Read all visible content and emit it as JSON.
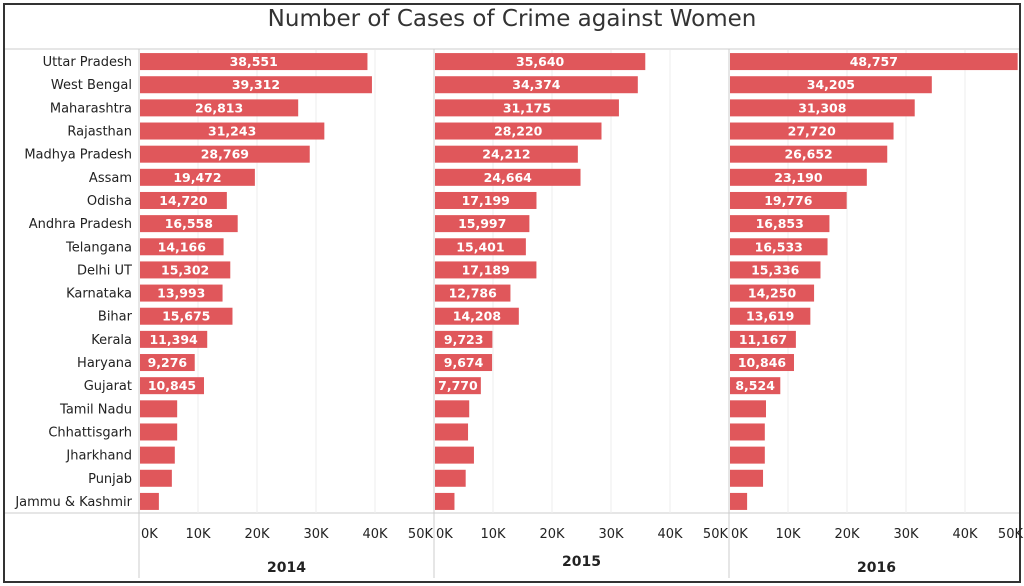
{
  "chart_data": {
    "type": "bar",
    "orientation": "horizontal",
    "title": "Number of Cases of Crime against Women",
    "categories": [
      "Uttar Pradesh",
      "West Bengal",
      "Maharashtra",
      "Rajasthan",
      "Madhya Pradesh",
      "Assam",
      "Odisha",
      "Andhra Pradesh",
      "Telangana",
      "Delhi UT",
      "Karnataka",
      "Bihar",
      "Kerala",
      "Haryana",
      "Gujarat",
      "Tamil Nadu",
      "Chhattisgarh",
      "Jharkhand",
      "Punjab",
      "Jammu & Kashmir"
    ],
    "panels": [
      {
        "name": "2014",
        "values": [
          38551,
          39312,
          26813,
          31243,
          28769,
          19472,
          14720,
          16558,
          14166,
          15302,
          13993,
          15675,
          11394,
          9276,
          10845,
          6300,
          6300,
          5900,
          5400,
          3200
        ],
        "labeled_count": 15
      },
      {
        "name": "2015",
        "values": [
          35640,
          34374,
          31175,
          28220,
          24212,
          24664,
          17199,
          15997,
          15401,
          17189,
          12786,
          14208,
          9723,
          9674,
          7770,
          5800,
          5600,
          6600,
          5200,
          3300
        ],
        "labeled_count": 15
      },
      {
        "name": "2016",
        "values": [
          48757,
          34205,
          31308,
          27720,
          26652,
          23190,
          19776,
          16853,
          16533,
          15336,
          14250,
          13619,
          11167,
          10846,
          8524,
          6100,
          5900,
          5900,
          5600,
          2900
        ],
        "labeled_count": 15
      }
    ],
    "xlim": [
      0,
      50000
    ],
    "x_ticks": [
      "0K",
      "10K",
      "20K",
      "30K",
      "40K",
      "50K"
    ],
    "grid": true,
    "bar_color": "#e0575b",
    "legend": "none"
  }
}
